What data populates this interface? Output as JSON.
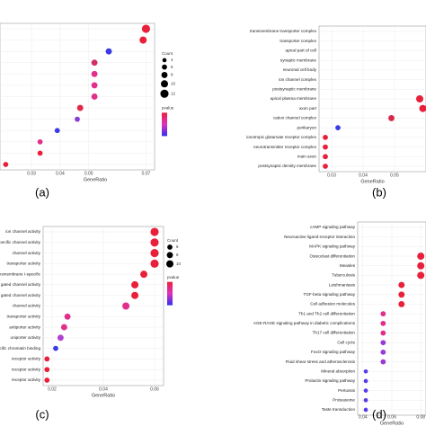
{
  "chart_data": [
    {
      "type": "dot",
      "label": "(a)",
      "xlabel": "GeneRatio",
      "categories": [
        null,
        null,
        null,
        null,
        null,
        null,
        null,
        null,
        null,
        null,
        null,
        null,
        null
      ],
      "values": [
        0.07,
        0.069,
        0.057,
        0.052,
        0.052,
        0.052,
        0.052,
        0.047,
        0.046,
        0.039,
        0.033,
        0.033,
        0.021
      ],
      "counts": [
        12,
        10,
        8,
        8,
        8,
        8,
        8,
        8,
        6,
        6,
        6,
        6,
        6
      ],
      "colors": [
        "#e8203a",
        "#e8203a",
        "#3a3ae8",
        "#d0306a",
        "#e0308c",
        "#e0308c",
        "#e0308c",
        "#e02848",
        "#8a3ad8",
        "#3a3ae8",
        "#e0308c",
        "#e8203a",
        "#e8203a"
      ],
      "xlim": [
        0.019,
        0.073
      ],
      "xticks": [
        0.03,
        0.04,
        0.05,
        0.07
      ],
      "size_legend": {
        "title": "Count",
        "values": [
          4,
          6,
          8,
          10,
          12
        ]
      },
      "color_legend": {
        "title": "pvalue"
      }
    },
    {
      "type": "dot",
      "label": "(b)",
      "xlabel": "GeneRatio",
      "categories": [
        "transmembrane transporter complex",
        "transporter complex",
        "apical part of cell",
        "synaptic membrane",
        "neuronal cell body",
        "ion channel complex",
        "postsynaptic membrane",
        "apical plasma membrane",
        "axon part",
        "cation channel complex",
        "perikaryon",
        "ionotropic glutamate receptor complex",
        "neurotransmitter receptor complex",
        "main axon",
        "postsynaptic density membrane"
      ],
      "values": [
        null,
        null,
        null,
        null,
        null,
        null,
        null,
        0.058,
        0.059,
        0.049,
        0.032,
        0.028,
        0.028,
        0.028,
        0.028
      ],
      "counts": [
        null,
        null,
        null,
        null,
        null,
        null,
        null,
        10,
        10,
        8,
        6,
        6,
        6,
        6,
        6
      ],
      "colors": [
        null,
        null,
        null,
        null,
        null,
        null,
        null,
        "#e8203a",
        "#e8203a",
        "#d8284a",
        "#3a3ae8",
        "#e8203a",
        "#e8203a",
        "#e8203a",
        "#e8203a"
      ],
      "xlim": [
        0.026,
        0.06
      ],
      "xticks": [
        0.03,
        0.04,
        0.05
      ]
    },
    {
      "type": "dot",
      "label": "(c)",
      "xlabel": "GeneRatio",
      "categories": [
        "ion channel activity",
        "specific channel activity",
        "channel activity",
        "transporter activity",
        "transmembrane I-specific",
        "gated channel activity",
        "gated channel activity",
        "channel activity",
        "transporter activity",
        "antiporter activity",
        "uniporter activity",
        "specific chromatin binding",
        "receptor activity",
        "receptor activity",
        "receptor activity"
      ],
      "values": [
        0.06,
        0.06,
        0.06,
        0.06,
        0.0558,
        0.0523,
        0.0523,
        0.0488,
        0.026,
        0.0247,
        0.0233,
        0.0214,
        0.018,
        0.018,
        0.018
      ],
      "counts": [
        12,
        12,
        12,
        12,
        10,
        10,
        10,
        10,
        8,
        8,
        8,
        6,
        6,
        6,
        6
      ],
      "colors": [
        "#e8203a",
        "#e8203a",
        "#e8203a",
        "#e8203a",
        "#e8203a",
        "#e8203a",
        "#e8203a",
        "#e0308c",
        "#e0308c",
        "#e0308c",
        "#b040d0",
        "#3a3ae8",
        "#e8203a",
        "#e8203a",
        "#e8203a"
      ],
      "xlim": [
        0.0165,
        0.0635
      ],
      "xticks": [
        0.02,
        0.04,
        0.06
      ],
      "size_legend": {
        "title": "Count",
        "values": [
          6,
          8,
          10
        ]
      },
      "color_legend": {
        "title": "pvalue"
      }
    },
    {
      "type": "dot",
      "label": "(d)",
      "xlabel": "GeneRatio",
      "categories": [
        "cAMP signaling pathway",
        "Neuroactive ligand-receptor interaction",
        "MAPK signaling pathway",
        "Osteoclast differentiation",
        "Measles",
        "Tuberculosis",
        "Leishmaniasis",
        "TGF-beta signaling pathway",
        "Cell adhesion molecules",
        "Th1 and Th2 cell differentiation",
        "AGE-RAGE signaling pathway in diabetic complications",
        "Th17 cell differentiation",
        "Cell cycle",
        "FoxO signaling pathway",
        "Fluid shear stress and atherosclerosis",
        "Mineral absorption",
        "Prolactin signaling pathway",
        "Pertussis",
        "Proteasome",
        "Taste transduction"
      ],
      "values": [
        null,
        null,
        null,
        0.08,
        0.08,
        0.08,
        0.0667,
        0.0667,
        0.0667,
        0.054,
        0.054,
        0.054,
        0.054,
        0.054,
        0.054,
        0.042,
        0.042,
        0.042,
        0.042,
        0.042
      ],
      "counts": [
        null,
        null,
        null,
        10,
        10,
        10,
        8,
        8,
        8,
        6,
        6,
        6,
        6,
        6,
        6,
        4,
        4,
        4,
        4,
        4
      ],
      "colors": [
        null,
        null,
        null,
        "#e8203a",
        "#e8203a",
        "#e8203a",
        "#e8203a",
        "#e8203a",
        "#e8203a",
        "#e0308c",
        "#e0308c",
        "#e0308c",
        "#9a3ad8",
        "#9a3ad8",
        "#9a3ad8",
        "#5a3ae8",
        "#5a3ae8",
        "#5a3ae8",
        "#5a3ae8",
        "#5a3ae8"
      ],
      "xlim": [
        0.0364,
        0.0836
      ],
      "xticks": [
        0.04,
        0.06,
        0.08
      ]
    }
  ]
}
